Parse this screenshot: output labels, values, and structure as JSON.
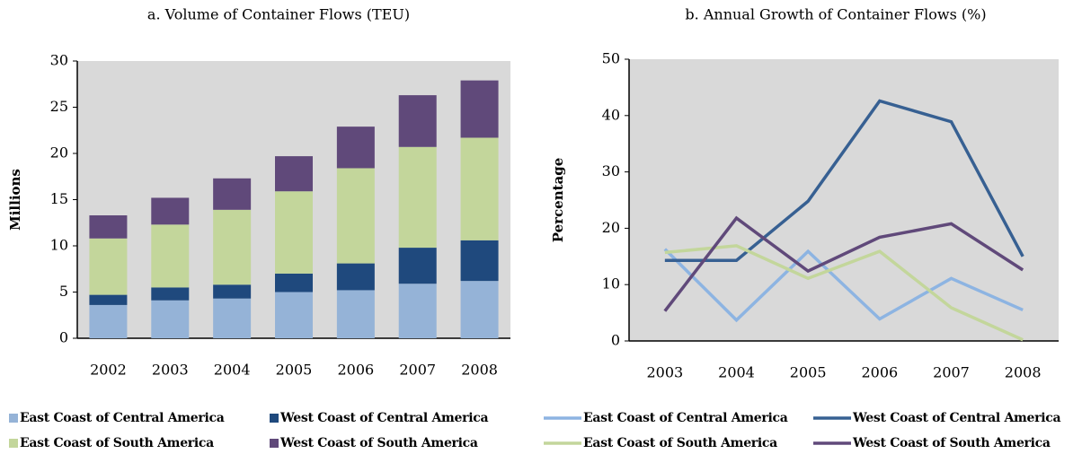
{
  "chart_data": [
    {
      "type": "stacked_bar",
      "title": "a. Volume of Container Flows (TEU)",
      "y_label": "Millions",
      "categories": [
        "2002",
        "2003",
        "2004",
        "2005",
        "2006",
        "2007",
        "2008"
      ],
      "series": [
        {
          "name": "East Coast of Central America",
          "color": "#95b3d7",
          "values": [
            3.6,
            4.1,
            4.3,
            5.0,
            5.2,
            5.9,
            6.2
          ]
        },
        {
          "name": "West Coast of Central America",
          "color": "#1f497d",
          "values": [
            1.1,
            1.4,
            1.5,
            2.0,
            2.9,
            3.9,
            4.4
          ]
        },
        {
          "name": "East Coast of South America",
          "color": "#c3d69b",
          "values": [
            6.1,
            6.8,
            8.1,
            8.9,
            10.3,
            10.9,
            11.1
          ]
        },
        {
          "name": "West Coast of South America",
          "color": "#60497a",
          "values": [
            2.5,
            2.9,
            3.4,
            3.8,
            4.5,
            5.6,
            6.2
          ]
        }
      ],
      "ylim": [
        0,
        30
      ],
      "yticks": [
        0,
        5,
        10,
        15,
        20,
        25,
        30
      ]
    },
    {
      "type": "line",
      "title": "b. Annual Growth of Container Flows (%)",
      "y_label": "Percentage",
      "categories": [
        "2003",
        "2004",
        "2005",
        "2006",
        "2007",
        "2008"
      ],
      "series": [
        {
          "name": "East Coast of Central America",
          "color": "#8db4e2",
          "values": [
            16.3,
            3.7,
            15.9,
            3.9,
            11.1,
            5.5
          ]
        },
        {
          "name": "West Coast of Central America",
          "color": "#376092",
          "values": [
            14.3,
            14.3,
            24.8,
            42.6,
            38.9,
            15.0
          ]
        },
        {
          "name": "East Coast of South America",
          "color": "#c3d69b",
          "values": [
            15.7,
            16.9,
            11.1,
            15.9,
            5.9,
            0.2
          ]
        },
        {
          "name": "West Coast of South America",
          "color": "#60497a",
          "values": [
            5.3,
            21.8,
            12.4,
            18.4,
            20.8,
            12.6
          ]
        }
      ],
      "ylim": [
        0,
        50
      ],
      "yticks": [
        0,
        10,
        20,
        30,
        40,
        50
      ]
    }
  ]
}
